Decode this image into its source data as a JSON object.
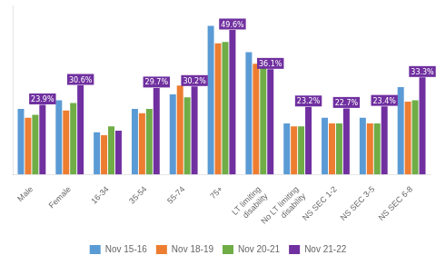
{
  "chart_data": {
    "type": "bar",
    "categories": [
      "Male",
      "Female",
      "16-34",
      "35-54",
      "55-74",
      "75+",
      "LT limiting\ndisability",
      "No LT limiting\ndisability",
      "NS SEC 1-2",
      "NS SEC 3-5",
      "NS SEC 6-8"
    ],
    "series": [
      {
        "name": "Nov 15-16",
        "color": "#5B9BD5",
        "values": [
          22.5,
          25.5,
          14.5,
          22.5,
          27.5,
          51.0,
          42.0,
          17.5,
          19.5,
          19.5,
          30.0
        ]
      },
      {
        "name": "Nov 18-19",
        "color": "#ED7D31",
        "values": [
          19.5,
          22.0,
          13.5,
          21.0,
          30.5,
          45.0,
          38.0,
          16.5,
          17.5,
          17.5,
          25.0
        ]
      },
      {
        "name": "Nov 20-21",
        "color": "#70AD47",
        "values": [
          20.5,
          24.5,
          16.5,
          22.5,
          26.5,
          45.5,
          39.0,
          16.5,
          17.5,
          17.5,
          25.5
        ]
      },
      {
        "name": "Nov 21-22",
        "color": "#7030A0",
        "values": [
          23.9,
          30.6,
          15.0,
          29.7,
          30.2,
          49.6,
          36.1,
          23.2,
          22.7,
          23.4,
          33.3
        ],
        "data_labels": true,
        "value_labels": [
          "23.9%",
          "30.6%",
          null,
          "29.7%",
          "30.2%",
          "49.6%",
          "36.1%",
          "23.2%",
          "22.7%",
          "23.4%",
          "33.3%"
        ]
      }
    ],
    "ylim": [
      0,
      58
    ],
    "tick_labels": "x",
    "grid": false,
    "legend": "bottom"
  }
}
